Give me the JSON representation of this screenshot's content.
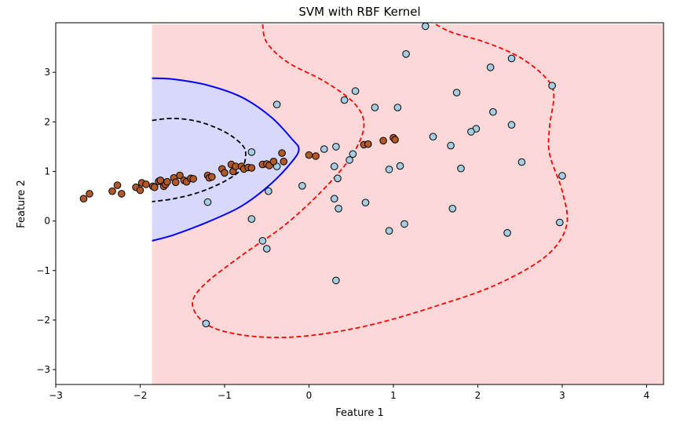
{
  "chart_data": {
    "type": "scatter",
    "title": "SVM with RBF Kernel",
    "xlabel": "Feature 1",
    "ylabel": "Feature 2",
    "xlim": [
      -3.0,
      4.2
    ],
    "ylim": [
      -3.3,
      4.0
    ],
    "xticks": [
      -3,
      -2,
      -1,
      0,
      1,
      2,
      3,
      4
    ],
    "yticks": [
      -3,
      -2,
      -1,
      0,
      1,
      2,
      3
    ],
    "xtick_labels": [
      "−3",
      "−2",
      "−1",
      "0",
      "1",
      "2",
      "3",
      "4"
    ],
    "ytick_labels": [
      "−3",
      "−2",
      "−1",
      "0",
      "1",
      "2",
      "3"
    ],
    "grid": false,
    "colors": {
      "class0_point": "#a6cee3",
      "class1_point": "#b15928",
      "point_edge": "#000000",
      "region_positive": "#fdd8d8",
      "region_negative": "#d8d8fd",
      "decision_boundary": "#0000ff",
      "margin_outer": "#ff0000",
      "margin_inner": "#000000"
    },
    "regions": [
      {
        "label": "positive",
        "color": "#fdd8d8",
        "polygon": [
          [
            -1.86,
            3.97
          ],
          [
            4.2,
            3.97
          ],
          [
            4.2,
            -3.3
          ],
          [
            -1.86,
            -3.3
          ]
        ]
      },
      {
        "label": "negative",
        "color": "#d8d8fd",
        "polygon": [
          [
            -1.86,
            2.88
          ],
          [
            -1.6,
            2.86
          ],
          [
            -1.2,
            2.74
          ],
          [
            -0.8,
            2.5
          ],
          [
            -0.45,
            2.1
          ],
          [
            -0.2,
            1.65
          ],
          [
            -0.12,
            1.45
          ],
          [
            -0.2,
            1.2
          ],
          [
            -0.45,
            0.75
          ],
          [
            -0.8,
            0.3
          ],
          [
            -1.2,
            -0.02
          ],
          [
            -1.6,
            -0.28
          ],
          [
            -1.86,
            -0.4
          ]
        ]
      }
    ],
    "contours": [
      {
        "level": 0,
        "style": "solid",
        "color": "#0000ff",
        "points": [
          [
            -1.86,
            2.88
          ],
          [
            -1.6,
            2.86
          ],
          [
            -1.2,
            2.74
          ],
          [
            -0.8,
            2.5
          ],
          [
            -0.45,
            2.1
          ],
          [
            -0.2,
            1.65
          ],
          [
            -0.12,
            1.45
          ],
          [
            -0.2,
            1.2
          ],
          [
            -0.45,
            0.75
          ],
          [
            -0.8,
            0.3
          ],
          [
            -1.2,
            -0.02
          ],
          [
            -1.6,
            -0.28
          ],
          [
            -1.86,
            -0.4
          ]
        ]
      },
      {
        "level": -1,
        "style": "dashed",
        "color": "#000000",
        "points": [
          [
            -1.86,
            2.03
          ],
          [
            -1.6,
            2.07
          ],
          [
            -1.3,
            2.0
          ],
          [
            -1.0,
            1.8
          ],
          [
            -0.8,
            1.55
          ],
          [
            -0.75,
            1.35
          ],
          [
            -0.8,
            1.05
          ],
          [
            -1.0,
            0.8
          ],
          [
            -1.3,
            0.58
          ],
          [
            -1.6,
            0.45
          ],
          [
            -1.86,
            0.39
          ]
        ]
      },
      {
        "level": 1,
        "style": "dashed",
        "color": "#ff0000",
        "points": [
          [
            -0.55,
            3.97
          ],
          [
            -0.5,
            3.6
          ],
          [
            -0.25,
            3.2
          ],
          [
            0.2,
            2.8
          ],
          [
            0.55,
            2.35
          ],
          [
            0.65,
            1.9
          ],
          [
            0.5,
            1.3
          ],
          [
            0.15,
            0.6
          ],
          [
            -0.3,
            -0.1
          ],
          [
            -0.8,
            -0.7
          ],
          [
            -1.25,
            -1.3
          ],
          [
            -1.38,
            -1.7
          ],
          [
            -1.2,
            -2.1
          ],
          [
            -0.8,
            -2.3
          ],
          [
            -0.3,
            -2.35
          ],
          [
            0.2,
            -2.27
          ],
          [
            0.8,
            -2.07
          ],
          [
            1.5,
            -1.72
          ],
          [
            2.2,
            -1.3
          ],
          [
            2.8,
            -0.72
          ],
          [
            3.05,
            -0.1
          ],
          [
            3.0,
            0.6
          ],
          [
            2.85,
            1.35
          ],
          [
            2.85,
            1.9
          ],
          [
            2.9,
            2.55
          ],
          [
            2.8,
            2.9
          ],
          [
            2.5,
            3.3
          ],
          [
            2.1,
            3.6
          ],
          [
            1.7,
            3.8
          ],
          [
            1.5,
            3.97
          ]
        ]
      }
    ],
    "series": [
      {
        "class": 0,
        "color": "#a6cee3",
        "x": [
          1.38,
          1.15,
          2.4,
          2.15,
          2.88,
          0.55,
          1.75,
          0.42,
          0.78,
          1.05,
          2.18,
          -0.38,
          2.4,
          1.98,
          1.92,
          1.47,
          1.68,
          0.32,
          0.3,
          0.52,
          -0.68,
          0.48,
          2.52,
          1.8,
          1.08,
          0.95,
          0.34,
          -0.38,
          -0.48,
          0.18,
          3.0,
          -0.08,
          -1.2,
          0.3,
          0.67,
          0.35,
          1.7,
          -0.68,
          2.97,
          1.13,
          0.95,
          -0.55,
          -0.5,
          2.35,
          0.32,
          -1.22
        ],
        "y": [
          3.93,
          3.37,
          3.28,
          3.1,
          2.73,
          2.62,
          2.59,
          2.44,
          2.29,
          2.29,
          2.2,
          2.35,
          1.94,
          1.86,
          1.8,
          1.7,
          1.52,
          1.5,
          1.1,
          1.35,
          1.39,
          1.23,
          1.19,
          1.06,
          1.11,
          1.04,
          0.86,
          1.1,
          0.6,
          1.45,
          0.91,
          0.71,
          0.38,
          0.45,
          0.37,
          0.25,
          0.25,
          0.04,
          -0.03,
          -0.06,
          -0.2,
          -0.4,
          -0.56,
          -0.24,
          -1.2,
          -2.07
        ]
      },
      {
        "class": 1,
        "color": "#b15928",
        "x": [
          -2.67,
          -2.6,
          -2.33,
          -2.27,
          -2.22,
          -2.05,
          -2.0,
          -1.98,
          -1.93,
          -1.85,
          -1.83,
          -1.78,
          -1.76,
          -1.72,
          -1.7,
          -1.68,
          -1.6,
          -1.58,
          -1.53,
          -1.48,
          -1.45,
          -1.4,
          -1.37,
          -1.2,
          -1.18,
          -1.15,
          -1.03,
          -1.0,
          -0.92,
          -0.9,
          -0.87,
          -0.8,
          -0.77,
          -0.72,
          -0.68,
          -0.55,
          -0.5,
          -0.47,
          -0.42,
          -0.32,
          -0.3,
          0.0,
          0.08,
          0.65,
          0.7,
          0.88,
          1.0,
          1.02
        ],
        "y": [
          0.45,
          0.55,
          0.6,
          0.72,
          0.55,
          0.68,
          0.62,
          0.77,
          0.74,
          0.7,
          0.68,
          0.8,
          0.82,
          0.7,
          0.74,
          0.79,
          0.87,
          0.78,
          0.92,
          0.82,
          0.79,
          0.86,
          0.85,
          0.92,
          0.87,
          0.89,
          1.05,
          0.97,
          1.14,
          1.0,
          1.1,
          1.1,
          1.05,
          1.08,
          1.07,
          1.14,
          1.15,
          1.12,
          1.2,
          1.37,
          1.2,
          1.33,
          1.31,
          1.54,
          1.55,
          1.62,
          1.68,
          1.64
        ]
      }
    ]
  }
}
